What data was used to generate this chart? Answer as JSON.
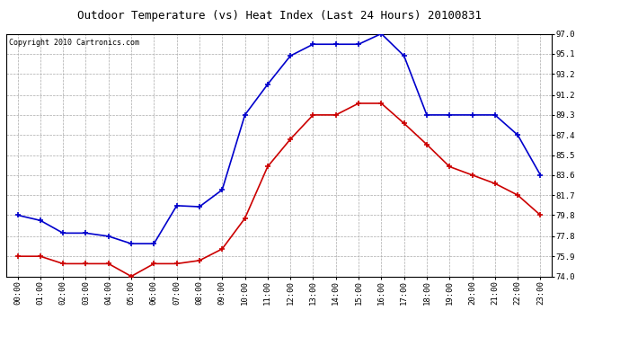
{
  "title": "Outdoor Temperature (vs) Heat Index (Last 24 Hours) 20100831",
  "copyright": "Copyright 2010 Cartronics.com",
  "hours": [
    "00:00",
    "01:00",
    "02:00",
    "03:00",
    "04:00",
    "05:00",
    "06:00",
    "07:00",
    "08:00",
    "09:00",
    "10:00",
    "11:00",
    "12:00",
    "13:00",
    "14:00",
    "15:00",
    "16:00",
    "17:00",
    "18:00",
    "19:00",
    "20:00",
    "21:00",
    "22:00",
    "23:00"
  ],
  "blue_data": [
    79.8,
    79.3,
    78.1,
    78.1,
    77.8,
    77.1,
    77.1,
    80.7,
    80.6,
    82.2,
    89.3,
    92.2,
    94.9,
    96.0,
    96.0,
    96.0,
    97.0,
    94.9,
    89.3,
    89.3,
    89.3,
    89.3,
    87.4,
    83.6
  ],
  "red_data": [
    75.9,
    75.9,
    75.2,
    75.2,
    75.2,
    74.0,
    75.2,
    75.2,
    75.5,
    76.6,
    79.5,
    84.4,
    87.0,
    89.3,
    89.3,
    90.4,
    90.4,
    88.5,
    86.5,
    84.4,
    83.6,
    82.8,
    81.7,
    79.8
  ],
  "blue_color": "#0000cc",
  "red_color": "#cc0000",
  "bg_color": "#ffffff",
  "grid_color": "#aaaaaa",
  "ylim_min": 74.0,
  "ylim_max": 97.0,
  "yticks": [
    74.0,
    75.9,
    77.8,
    79.8,
    81.7,
    83.6,
    85.5,
    87.4,
    89.3,
    91.2,
    93.2,
    95.1,
    97.0
  ],
  "title_fontsize": 9,
  "copyright_fontsize": 6,
  "tick_fontsize": 6.5
}
